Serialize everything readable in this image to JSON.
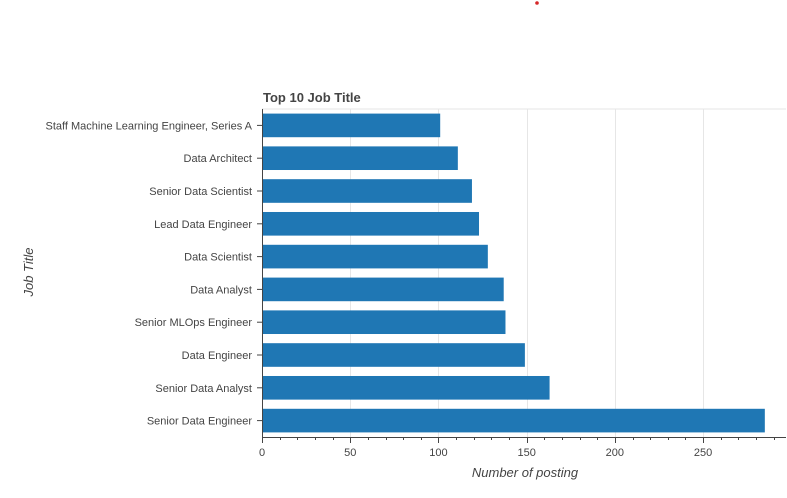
{
  "chart_data": {
    "type": "bar",
    "orientation": "horizontal",
    "title": "Top 10 Job Title",
    "xlabel": "Number of posting",
    "ylabel": "Job Title",
    "categories": [
      "Staff Machine Learning Engineer, Series A",
      "Data Architect",
      "Senior Data Scientist",
      "Lead Data Engineer",
      "Data Scientist",
      "Data Analyst",
      "Senior MLOps Engineer",
      "Data Engineer",
      "Senior Data Analyst",
      "Senior Data Engineer"
    ],
    "values": [
      101,
      111,
      119,
      123,
      128,
      137,
      138,
      149,
      163,
      285
    ],
    "xlim": [
      0,
      297
    ],
    "xticks": [
      0,
      50,
      100,
      150,
      200,
      250
    ],
    "xtick_labels": [
      "0",
      "50",
      "100",
      "150",
      "200",
      "250"
    ],
    "grid": "vertical",
    "legend": "none",
    "bar_color": "#1f77b4"
  }
}
